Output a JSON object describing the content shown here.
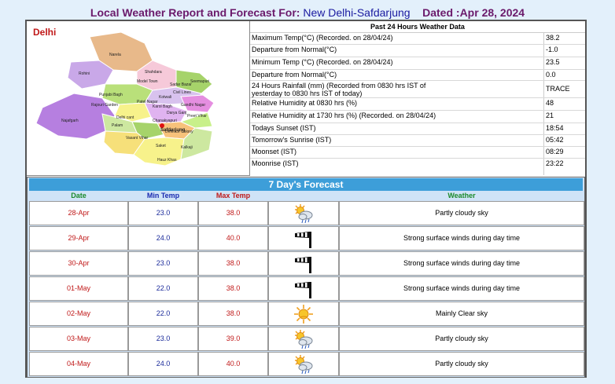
{
  "header": {
    "prefix": "Local Weather Report and Forecast For:",
    "station": "New Delhi-Safdarjung",
    "dated": "Dated :Apr 28, 2024"
  },
  "map": {
    "title": "Delhi",
    "districts": [
      "Narela",
      "Rohini",
      "Shahdara",
      "Model Town",
      "Seemapuri",
      "Sadar Bazar",
      "Punjabi Bagh",
      "Civil Lines",
      "Kotwali",
      "Patel Nagar",
      "Karol Bagh",
      "Gandhi Nagar",
      "Rajouri Garden",
      "Darya Ganj",
      "Preet Vihar",
      "Delhi cant",
      "Chanakyapuri",
      "Najafgarh",
      "Palam",
      "Vasant Vihar",
      "Defence Colony",
      "Saket",
      "Hauz Khas",
      "Kalkaji",
      "Safdarjung"
    ]
  },
  "past24": {
    "title": "Past 24 Hours Weather Data",
    "rows": [
      {
        "label": "Maximum Temp(°C) (Recorded. on 28/04/24)",
        "value": "38.2"
      },
      {
        "label": "Departure from Normal(°C)",
        "value": "-1.0"
      },
      {
        "label": "Minimum Temp (°C) (Recorded. on 28/04/24)",
        "value": "23.5"
      },
      {
        "label": "Departure from Normal(°C)",
        "value": "0.0"
      },
      {
        "label": "24 Hours Rainfall (mm) (Recorded from 0830 hrs IST of yesterday to 0830 hrs IST of today)",
        "value": "TRACE"
      },
      {
        "label": "Relative Humidity at 0830 hrs (%)",
        "value": "48"
      },
      {
        "label": "Relative Humidity at 1730 hrs (%) (Recorded. on 28/04/24)",
        "value": "21"
      },
      {
        "label": "Todays Sunset (IST)",
        "value": "18:54"
      },
      {
        "label": "Tomorrow's Sunrise (IST)",
        "value": "05:42"
      },
      {
        "label": "Moonset (IST)",
        "value": "08:29"
      },
      {
        "label": "Moonrise (IST)",
        "value": "23:22"
      }
    ]
  },
  "forecast": {
    "title": "7 Day's Forecast",
    "headers": {
      "date": "Date",
      "min": "Min Temp",
      "max": "Max Temp",
      "weather": "Weather"
    },
    "header_colors": {
      "date": "#1a8a2a",
      "min": "#1a2ab0",
      "max": "#c01818",
      "weather": "#1a8a2a"
    },
    "rows": [
      {
        "date": "28-Apr",
        "min": "23.0",
        "max": "38.0",
        "icon": "partly-cloudy-icon",
        "weather": "Partly cloudy sky"
      },
      {
        "date": "29-Apr",
        "min": "24.0",
        "max": "40.0",
        "icon": "windsock-icon",
        "weather": "Strong surface winds during day time"
      },
      {
        "date": "30-Apr",
        "min": "23.0",
        "max": "38.0",
        "icon": "windsock-icon",
        "weather": "Strong surface winds during day time"
      },
      {
        "date": "01-May",
        "min": "22.0",
        "max": "38.0",
        "icon": "windsock-icon",
        "weather": "Strong surface winds during day time"
      },
      {
        "date": "02-May",
        "min": "22.0",
        "max": "38.0",
        "icon": "sun-icon",
        "weather": "Mainly Clear sky"
      },
      {
        "date": "03-May",
        "min": "23.0",
        "max": "39.0",
        "icon": "partly-cloudy-icon",
        "weather": "Partly cloudy sky"
      },
      {
        "date": "04-May",
        "min": "24.0",
        "max": "40.0",
        "icon": "partly-cloudy-icon",
        "weather": "Partly cloudy sky"
      }
    ]
  }
}
